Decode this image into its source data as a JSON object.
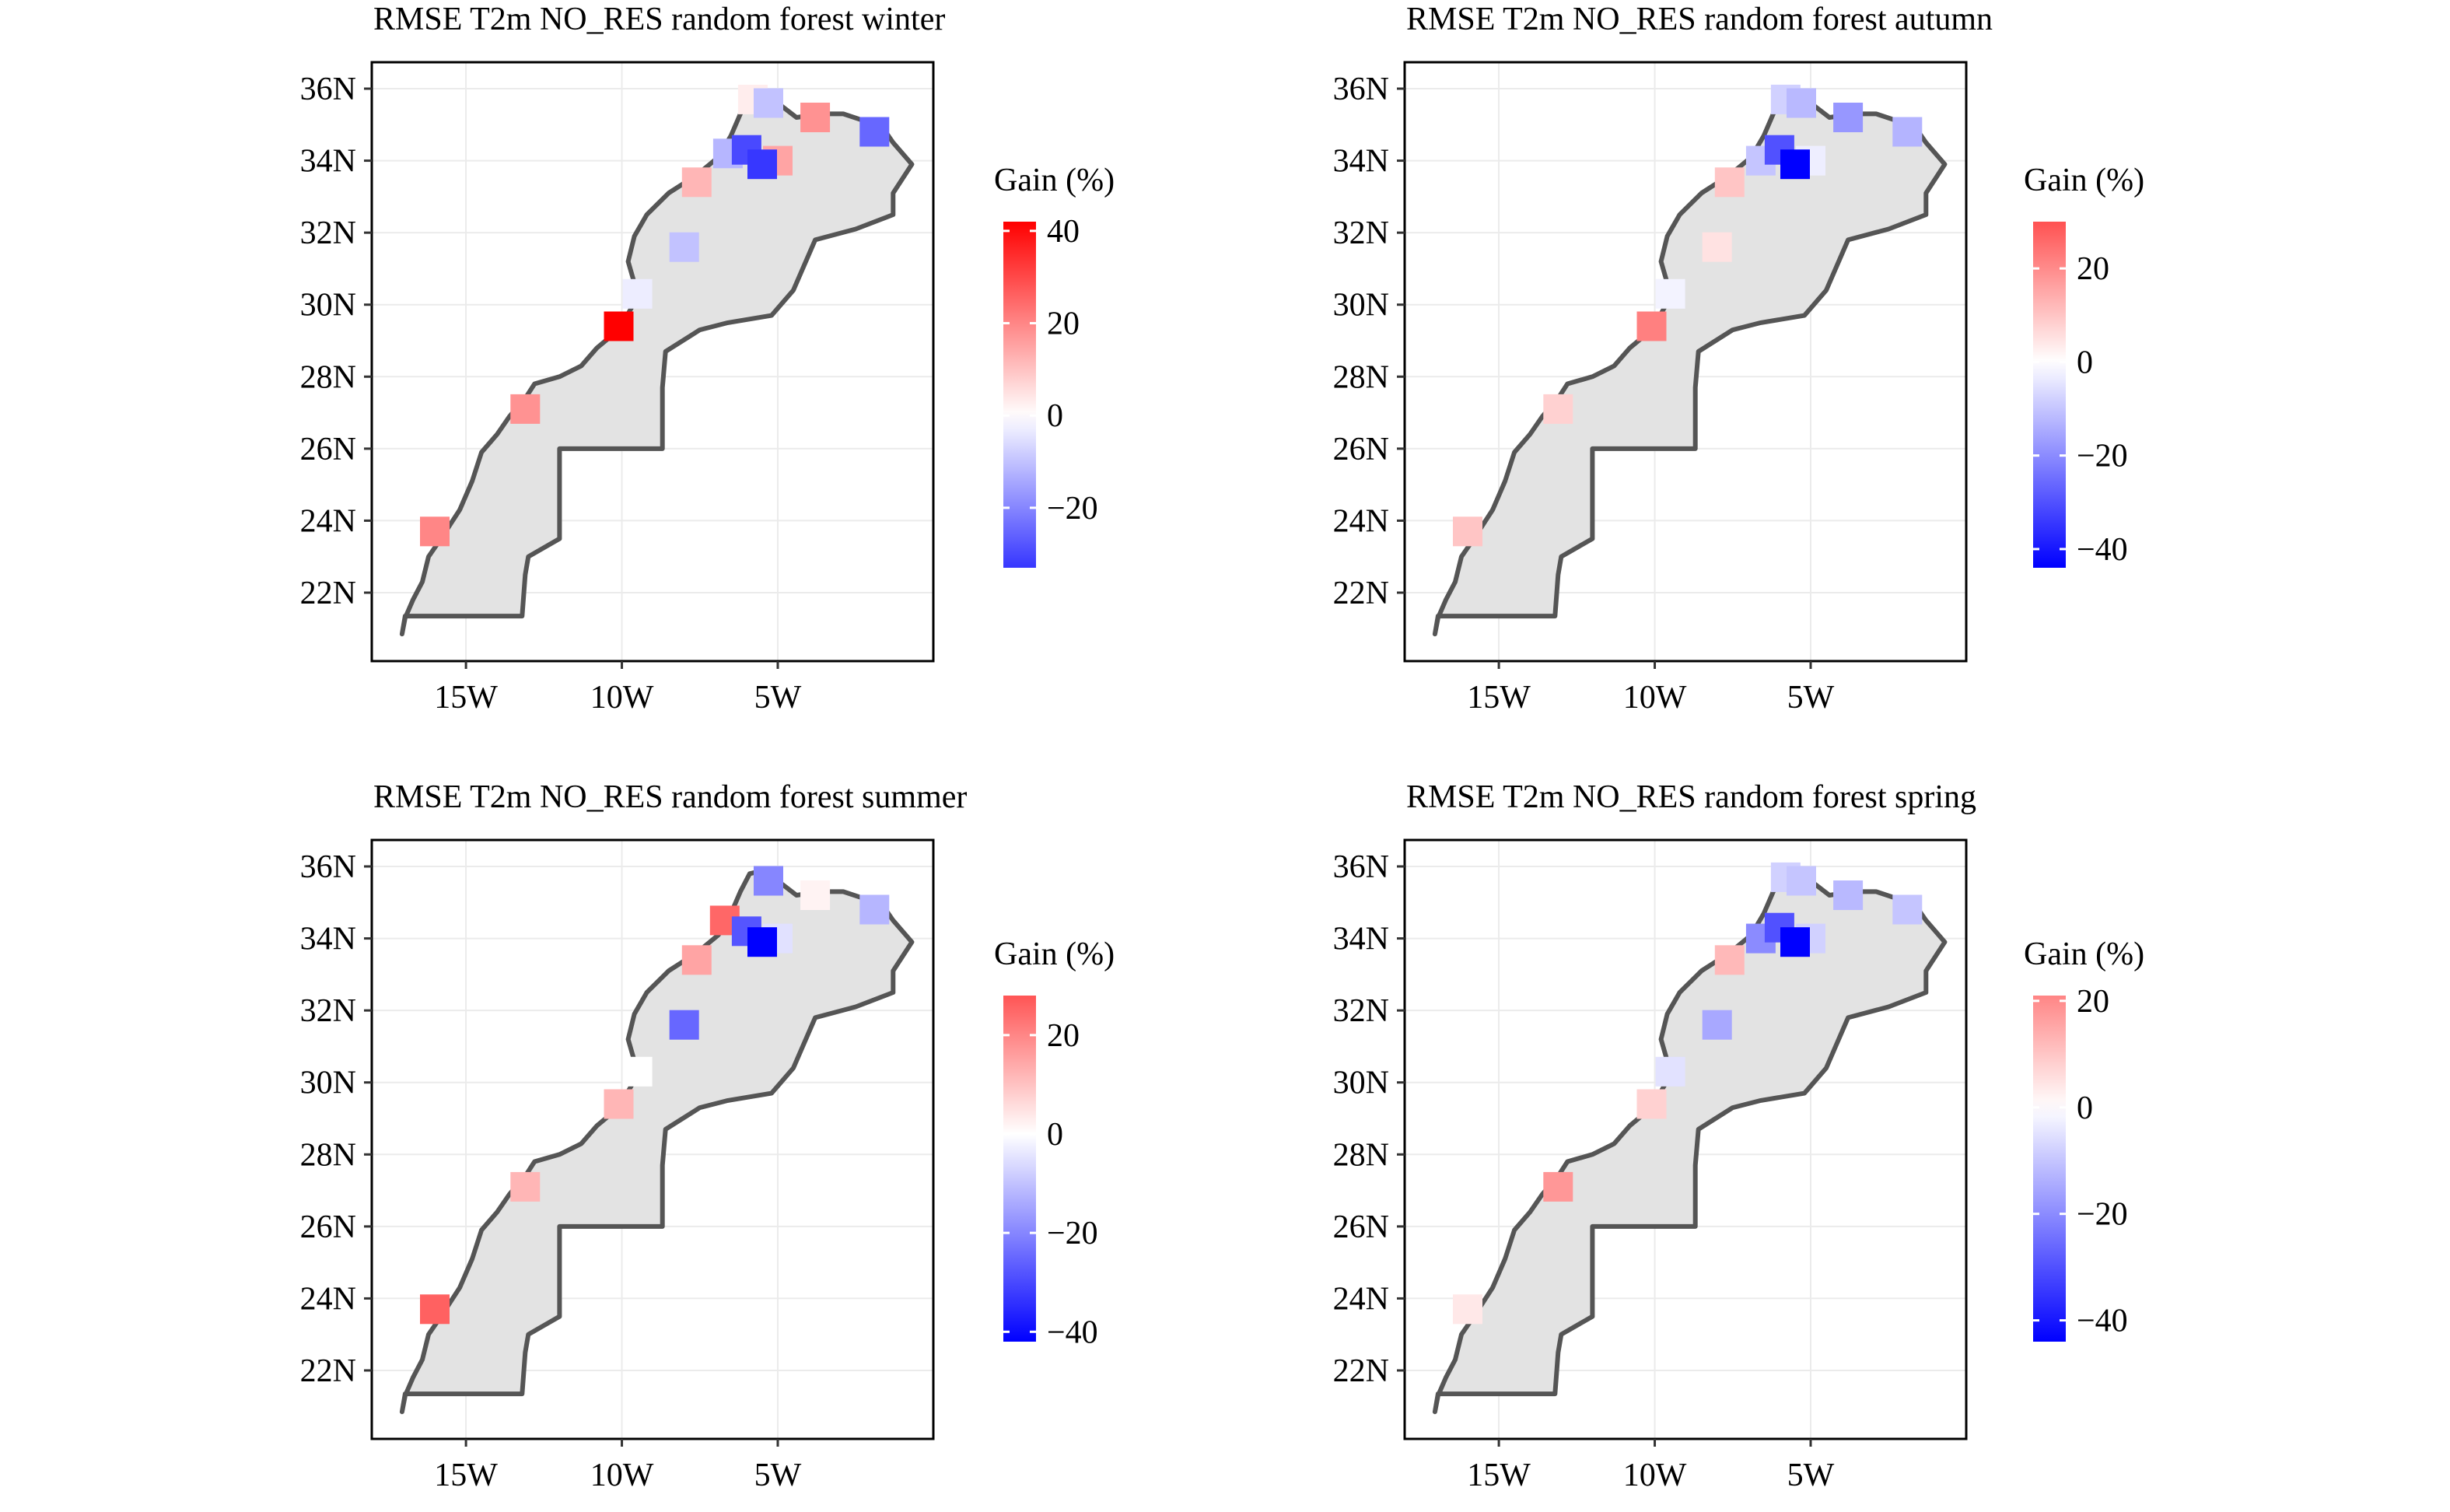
{
  "colors": {
    "negative": "#0000ff",
    "neutral": "#ffffff",
    "positive": "#ff0000",
    "land_fill": "#e3e3e3",
    "border": "#555555"
  },
  "panels": [
    {
      "title": "RMSE T2m NO_RES random forest winter",
      "legend_title": "Gain (%)",
      "legend_range": [
        -33,
        42
      ],
      "legend_ticks": [
        {
          "v": 40,
          "label": "40"
        },
        {
          "v": 20,
          "label": "20"
        },
        {
          "v": 0,
          "label": "0"
        },
        {
          "v": -20,
          "label": "−20"
        }
      ],
      "stations": [
        {
          "lon": -16.0,
          "lat": 23.7,
          "gain": 20
        },
        {
          "lon": -13.1,
          "lat": 27.1,
          "gain": 18
        },
        {
          "lon": -10.1,
          "lat": 29.4,
          "gain": 42
        },
        {
          "lon": -9.5,
          "lat": 30.3,
          "gain": -3
        },
        {
          "lon": -8.0,
          "lat": 31.6,
          "gain": -10
        },
        {
          "lon": -7.6,
          "lat": 33.4,
          "gain": 12
        },
        {
          "lon": -6.6,
          "lat": 34.2,
          "gain": -12
        },
        {
          "lon": -6.0,
          "lat": 34.3,
          "gain": -30
        },
        {
          "lon": -5.0,
          "lat": 34.0,
          "gain": 15
        },
        {
          "lon": -5.5,
          "lat": 33.9,
          "gain": -33
        },
        {
          "lon": -5.8,
          "lat": 35.7,
          "gain": 3
        },
        {
          "lon": -5.3,
          "lat": 35.6,
          "gain": -10
        },
        {
          "lon": -3.8,
          "lat": 35.2,
          "gain": 18
        },
        {
          "lon": -1.9,
          "lat": 34.8,
          "gain": -25
        }
      ]
    },
    {
      "title": "RMSE T2m NO_RES random forest autumn",
      "legend_title": "Gain (%)",
      "legend_range": [
        -44,
        30
      ],
      "legend_ticks": [
        {
          "v": 20,
          "label": "20"
        },
        {
          "v": 0,
          "label": "0"
        },
        {
          "v": -20,
          "label": "−20"
        },
        {
          "v": -40,
          "label": "−40"
        }
      ],
      "stations": [
        {
          "lon": -16.0,
          "lat": 23.7,
          "gain": 10
        },
        {
          "lon": -13.1,
          "lat": 27.1,
          "gain": 8
        },
        {
          "lon": -10.1,
          "lat": 29.4,
          "gain": 22
        },
        {
          "lon": -9.5,
          "lat": 30.3,
          "gain": -2
        },
        {
          "lon": -8.0,
          "lat": 31.6,
          "gain": 5
        },
        {
          "lon": -7.6,
          "lat": 33.4,
          "gain": 10
        },
        {
          "lon": -6.6,
          "lat": 34.0,
          "gain": -10
        },
        {
          "lon": -6.0,
          "lat": 34.3,
          "gain": -30
        },
        {
          "lon": -5.0,
          "lat": 34.0,
          "gain": -3
        },
        {
          "lon": -5.5,
          "lat": 33.9,
          "gain": -44
        },
        {
          "lon": -5.8,
          "lat": 35.7,
          "gain": -8
        },
        {
          "lon": -5.3,
          "lat": 35.6,
          "gain": -12
        },
        {
          "lon": -3.8,
          "lat": 35.2,
          "gain": -18
        },
        {
          "lon": -1.9,
          "lat": 34.8,
          "gain": -13
        }
      ]
    },
    {
      "title": "RMSE T2m NO_RES random forest summer",
      "legend_title": "Gain (%)",
      "legend_range": [
        -42,
        28
      ],
      "legend_ticks": [
        {
          "v": 20,
          "label": "20"
        },
        {
          "v": 0,
          "label": "0"
        },
        {
          "v": -20,
          "label": "−20"
        },
        {
          "v": -40,
          "label": "−40"
        }
      ],
      "stations": [
        {
          "lon": -16.0,
          "lat": 23.7,
          "gain": 26
        },
        {
          "lon": -13.1,
          "lat": 27.1,
          "gain": 12
        },
        {
          "lon": -10.1,
          "lat": 29.4,
          "gain": 12
        },
        {
          "lon": -9.5,
          "lat": 30.3,
          "gain": 0
        },
        {
          "lon": -8.0,
          "lat": 31.6,
          "gain": -25
        },
        {
          "lon": -7.6,
          "lat": 33.4,
          "gain": 15
        },
        {
          "lon": -6.7,
          "lat": 34.5,
          "gain": 25
        },
        {
          "lon": -6.0,
          "lat": 34.2,
          "gain": -28
        },
        {
          "lon": -5.0,
          "lat": 34.0,
          "gain": -5
        },
        {
          "lon": -5.5,
          "lat": 33.9,
          "gain": -42
        },
        {
          "lon": -5.3,
          "lat": 35.6,
          "gain": -20
        },
        {
          "lon": -3.8,
          "lat": 35.2,
          "gain": 2
        },
        {
          "lon": -1.9,
          "lat": 34.8,
          "gain": -12
        }
      ]
    },
    {
      "title": "RMSE T2m NO_RES random forest spring",
      "legend_title": "Gain (%)",
      "legend_range": [
        -44,
        21
      ],
      "legend_ticks": [
        {
          "v": 20,
          "label": "20"
        },
        {
          "v": 0,
          "label": "0"
        },
        {
          "v": -20,
          "label": "−20"
        },
        {
          "v": -40,
          "label": "−40"
        }
      ],
      "stations": [
        {
          "lon": -16.0,
          "lat": 23.7,
          "gain": 4
        },
        {
          "lon": -13.1,
          "lat": 27.1,
          "gain": 18
        },
        {
          "lon": -10.1,
          "lat": 29.4,
          "gain": 8
        },
        {
          "lon": -9.5,
          "lat": 30.3,
          "gain": -5
        },
        {
          "lon": -8.0,
          "lat": 31.6,
          "gain": -15
        },
        {
          "lon": -7.6,
          "lat": 33.4,
          "gain": 12
        },
        {
          "lon": -6.6,
          "lat": 34.0,
          "gain": -20
        },
        {
          "lon": -6.0,
          "lat": 34.3,
          "gain": -30
        },
        {
          "lon": -5.0,
          "lat": 34.0,
          "gain": -8
        },
        {
          "lon": -5.5,
          "lat": 33.9,
          "gain": -44
        },
        {
          "lon": -5.8,
          "lat": 35.7,
          "gain": -8
        },
        {
          "lon": -5.3,
          "lat": 35.6,
          "gain": -10
        },
        {
          "lon": -3.8,
          "lat": 35.2,
          "gain": -12
        },
        {
          "lon": -1.9,
          "lat": 34.8,
          "gain": -10
        }
      ]
    }
  ],
  "axes": {
    "y_ticks": [
      {
        "v": 36,
        "label": "36N"
      },
      {
        "v": 34,
        "label": "34N"
      },
      {
        "v": 32,
        "label": "32N"
      },
      {
        "v": 30,
        "label": "30N"
      },
      {
        "v": 28,
        "label": "28N"
      },
      {
        "v": 26,
        "label": "26N"
      },
      {
        "v": 24,
        "label": "24N"
      },
      {
        "v": 22,
        "label": "22N"
      }
    ],
    "x_ticks": [
      {
        "v": -15,
        "label": "15W"
      },
      {
        "v": -10,
        "label": "10W"
      },
      {
        "v": -5,
        "label": "5W"
      }
    ],
    "lon_range": [
      -17.5,
      0.0
    ],
    "lat_range": [
      20.3,
      36.7
    ]
  },
  "morocco_outline": [
    [
      -17.05,
      20.85
    ],
    [
      -16.95,
      21.3
    ],
    [
      -16.7,
      21.8
    ],
    [
      -16.4,
      22.3
    ],
    [
      -16.2,
      23.0
    ],
    [
      -15.8,
      23.5
    ],
    [
      -15.2,
      24.3
    ],
    [
      -14.8,
      25.1
    ],
    [
      -14.5,
      25.9
    ],
    [
      -14.0,
      26.4
    ],
    [
      -13.6,
      26.9
    ],
    [
      -13.1,
      27.4
    ],
    [
      -12.8,
      27.8
    ],
    [
      -12.0,
      28.0
    ],
    [
      -11.3,
      28.3
    ],
    [
      -10.8,
      28.8
    ],
    [
      -10.1,
      29.3
    ],
    [
      -9.7,
      29.9
    ],
    [
      -9.6,
      30.6
    ],
    [
      -9.8,
      31.2
    ],
    [
      -9.6,
      31.9
    ],
    [
      -9.2,
      32.5
    ],
    [
      -8.5,
      33.1
    ],
    [
      -7.6,
      33.6
    ],
    [
      -6.9,
      34.1
    ],
    [
      -6.5,
      34.7
    ],
    [
      -6.2,
      35.3
    ],
    [
      -5.9,
      35.8
    ],
    [
      -5.4,
      35.9
    ],
    [
      -5.0,
      35.6
    ],
    [
      -4.4,
      35.2
    ],
    [
      -3.6,
      35.3
    ],
    [
      -2.9,
      35.3
    ],
    [
      -2.2,
      35.1
    ],
    [
      -1.7,
      35.0
    ],
    [
      -1.3,
      34.5
    ],
    [
      -1.0,
      34.2
    ],
    [
      -0.7,
      33.9
    ],
    [
      -1.3,
      33.1
    ],
    [
      -1.3,
      32.5
    ],
    [
      -2.5,
      32.1
    ],
    [
      -3.8,
      31.8
    ],
    [
      -4.5,
      30.4
    ],
    [
      -5.2,
      29.7
    ],
    [
      -6.6,
      29.5
    ],
    [
      -7.5,
      29.3
    ],
    [
      -8.6,
      28.7
    ],
    [
      -8.7,
      27.7
    ],
    [
      -8.7,
      26.0
    ],
    [
      -12.0,
      26.0
    ],
    [
      -12.0,
      23.5
    ],
    [
      -13.0,
      23.0
    ],
    [
      -13.1,
      22.5
    ],
    [
      -13.2,
      21.35
    ],
    [
      -16.95,
      21.35
    ],
    [
      -17.05,
      20.85
    ]
  ]
}
